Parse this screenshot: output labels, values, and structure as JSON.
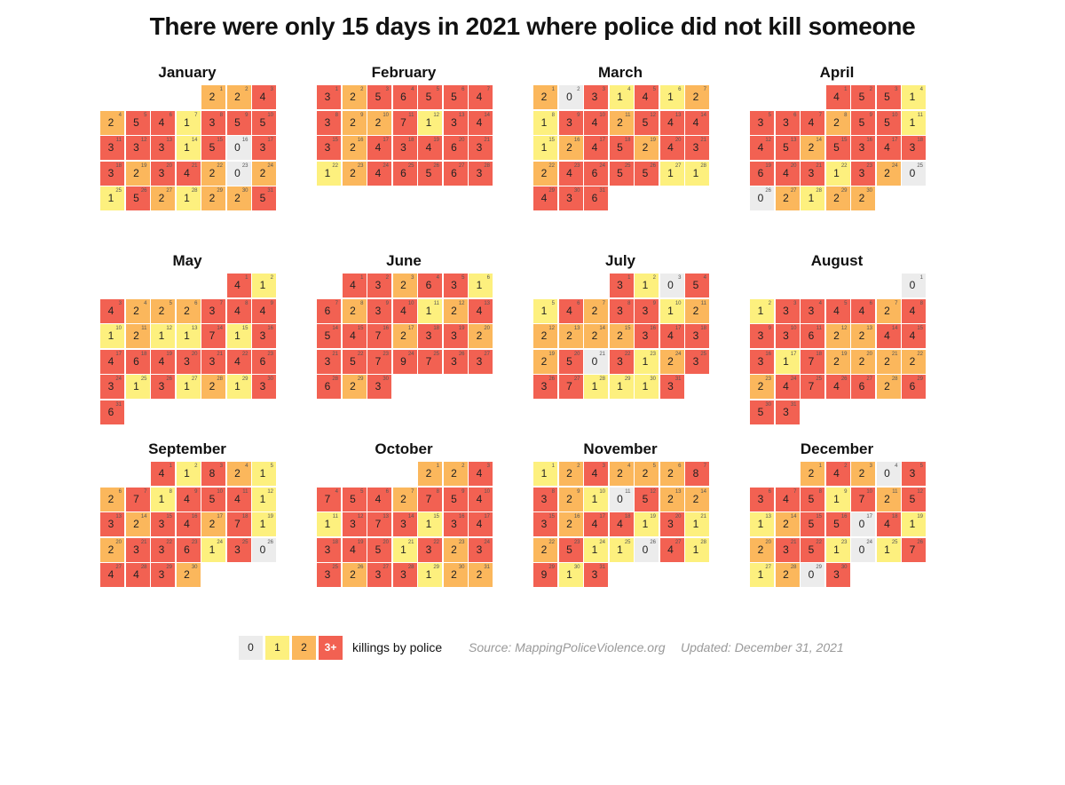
{
  "title": "There were only 15 days in 2021 where police did not kill someone",
  "colors": {
    "zero": "#ececec",
    "one": "#fdf07e",
    "two": "#fbb75c",
    "three_plus": "#f26152"
  },
  "legend": {
    "items": [
      {
        "label": "0",
        "color": "#ececec"
      },
      {
        "label": "1",
        "color": "#fdf07e"
      },
      {
        "label": "2",
        "color": "#fbb75c"
      },
      {
        "label": "3+",
        "color": "#f26152"
      }
    ],
    "label": "killings by police",
    "source": "Source: MappingPoliceViolence.org",
    "updated": "Updated: December 31, 2021"
  },
  "chart_data": {
    "type": "heatmap",
    "title": "There were only 15 days in 2021 where police did not kill someone",
    "year": 2021,
    "week_start": "Monday",
    "color_scale": [
      "0",
      "1",
      "2",
      "3+"
    ],
    "months": [
      {
        "name": "January",
        "first_weekday": 4,
        "counts": [
          2,
          2,
          4,
          2,
          5,
          4,
          1,
          3,
          5,
          5,
          3,
          3,
          3,
          1,
          5,
          0,
          3,
          3,
          2,
          3,
          4,
          2,
          0,
          2,
          1,
          5,
          2,
          1,
          2,
          2,
          5
        ]
      },
      {
        "name": "February",
        "first_weekday": 0,
        "counts": [
          3,
          2,
          5,
          6,
          5,
          5,
          4,
          3,
          2,
          2,
          7,
          1,
          3,
          4,
          3,
          2,
          4,
          3,
          4,
          6,
          3,
          1,
          2,
          4,
          6,
          5,
          6,
          3
        ]
      },
      {
        "name": "March",
        "first_weekday": 0,
        "counts": [
          2,
          0,
          3,
          1,
          4,
          1,
          2,
          1,
          3,
          4,
          2,
          5,
          4,
          4,
          1,
          2,
          4,
          5,
          2,
          4,
          3,
          2,
          4,
          6,
          5,
          5,
          1,
          1,
          4,
          3,
          6
        ]
      },
      {
        "name": "April",
        "first_weekday": 3,
        "counts": [
          4,
          5,
          5,
          1,
          3,
          3,
          4,
          2,
          5,
          5,
          1,
          4,
          5,
          2,
          5,
          3,
          4,
          3,
          6,
          4,
          3,
          1,
          3,
          2,
          0,
          0,
          2,
          1,
          2,
          2
        ]
      },
      {
        "name": "May",
        "first_weekday": 5,
        "counts": [
          4,
          1,
          4,
          2,
          2,
          2,
          3,
          4,
          4,
          1,
          2,
          1,
          1,
          7,
          1,
          3,
          4,
          6,
          4,
          3,
          3,
          4,
          6,
          3,
          1,
          3,
          1,
          2,
          1,
          3,
          6
        ]
      },
      {
        "name": "June",
        "first_weekday": 1,
        "counts": [
          4,
          3,
          2,
          6,
          3,
          1,
          6,
          2,
          3,
          4,
          1,
          2,
          4,
          5,
          4,
          7,
          2,
          3,
          3,
          2,
          3,
          5,
          7,
          9,
          7,
          3,
          3,
          6,
          2,
          3
        ]
      },
      {
        "name": "July",
        "first_weekday": 3,
        "counts": [
          3,
          1,
          0,
          5,
          1,
          4,
          2,
          3,
          3,
          1,
          2,
          2,
          2,
          2,
          2,
          3,
          4,
          3,
          2,
          5,
          0,
          3,
          1,
          2,
          3,
          3,
          7,
          1,
          1,
          1,
          3
        ]
      },
      {
        "name": "August",
        "first_weekday": 6,
        "counts": [
          0,
          1,
          3,
          3,
          4,
          4,
          2,
          4,
          3,
          3,
          6,
          2,
          2,
          4,
          4,
          3,
          1,
          7,
          2,
          2,
          2,
          2,
          2,
          4,
          7,
          4,
          6,
          2,
          6,
          5,
          3
        ]
      },
      {
        "name": "September",
        "first_weekday": 2,
        "counts": [
          4,
          1,
          8,
          2,
          1,
          2,
          7,
          1,
          4,
          5,
          4,
          1,
          3,
          2,
          3,
          4,
          2,
          7,
          1,
          2,
          3,
          3,
          6,
          1,
          3,
          0,
          4,
          4,
          3,
          2
        ]
      },
      {
        "name": "October",
        "first_weekday": 4,
        "counts": [
          2,
          2,
          4,
          7,
          5,
          4,
          2,
          7,
          5,
          4,
          1,
          3,
          7,
          3,
          1,
          3,
          4,
          3,
          4,
          5,
          1,
          3,
          2,
          3,
          3,
          2,
          3,
          3,
          1,
          2,
          2
        ]
      },
      {
        "name": "November",
        "first_weekday": 0,
        "counts": [
          1,
          2,
          4,
          2,
          2,
          2,
          8,
          3,
          2,
          1,
          0,
          5,
          2,
          2,
          3,
          2,
          4,
          4,
          1,
          3,
          1,
          2,
          5,
          1,
          1,
          0,
          4,
          1,
          9,
          1,
          3
        ]
      },
      {
        "name": "December",
        "first_weekday": 2,
        "counts": [
          2,
          4,
          2,
          0,
          3,
          3,
          4,
          5,
          1,
          7,
          2,
          5,
          1,
          2,
          5,
          5,
          0,
          4,
          1,
          2,
          3,
          5,
          1,
          0,
          1,
          7,
          1,
          2,
          0,
          3
        ]
      }
    ]
  }
}
